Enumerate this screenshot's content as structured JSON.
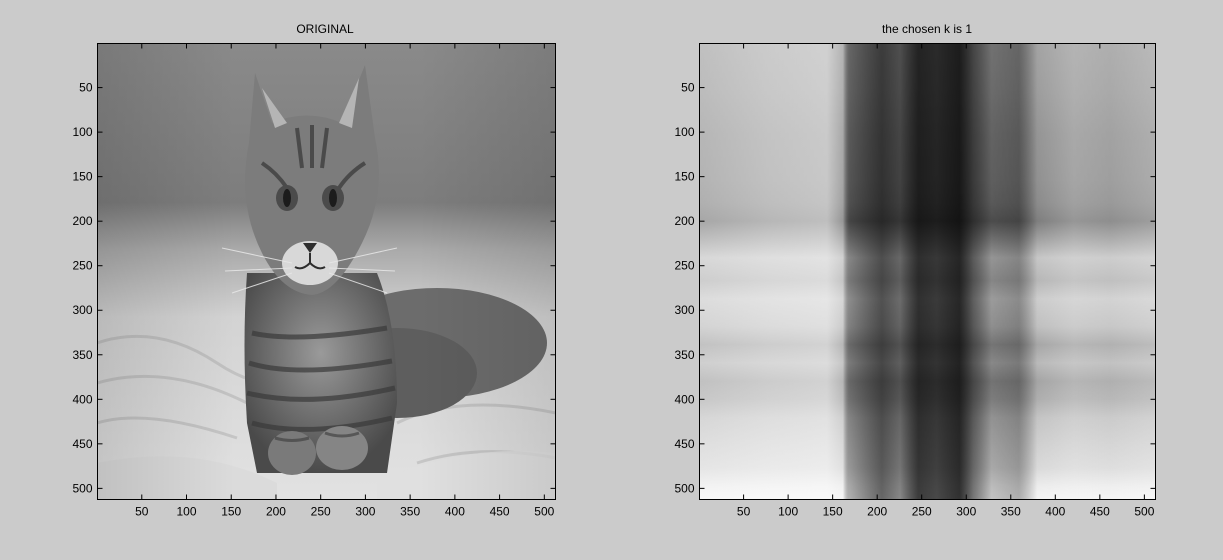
{
  "figure": {
    "background": "#cbcbcb"
  },
  "chart_data": [
    {
      "type": "heatmap",
      "title": "ORIGINAL",
      "xlabel": "",
      "ylabel": "",
      "xlim": [
        0.5,
        512.5
      ],
      "ylim": [
        0.5,
        512.5
      ],
      "y_reversed": true,
      "colormap": "gray",
      "xticks": [
        50,
        100,
        150,
        200,
        250,
        300,
        350,
        400,
        450,
        500
      ],
      "yticks": [
        50,
        100,
        150,
        200,
        250,
        300,
        350,
        400,
        450,
        500
      ],
      "content": "grayscale photograph of a tabby cat lying on a blanket"
    },
    {
      "type": "heatmap",
      "title": "the chosen k is 1",
      "xlabel": "",
      "ylabel": "",
      "xlim": [
        0.5,
        512.5
      ],
      "ylim": [
        0.5,
        512.5
      ],
      "y_reversed": true,
      "colormap": "gray",
      "xticks": [
        50,
        100,
        150,
        200,
        250,
        300,
        350,
        400,
        450,
        500
      ],
      "yticks": [
        50,
        100,
        150,
        200,
        250,
        300,
        350,
        400,
        450,
        500
      ],
      "content": "rank-1 SVD approximation (outer product of one column and one row profile)"
    }
  ]
}
